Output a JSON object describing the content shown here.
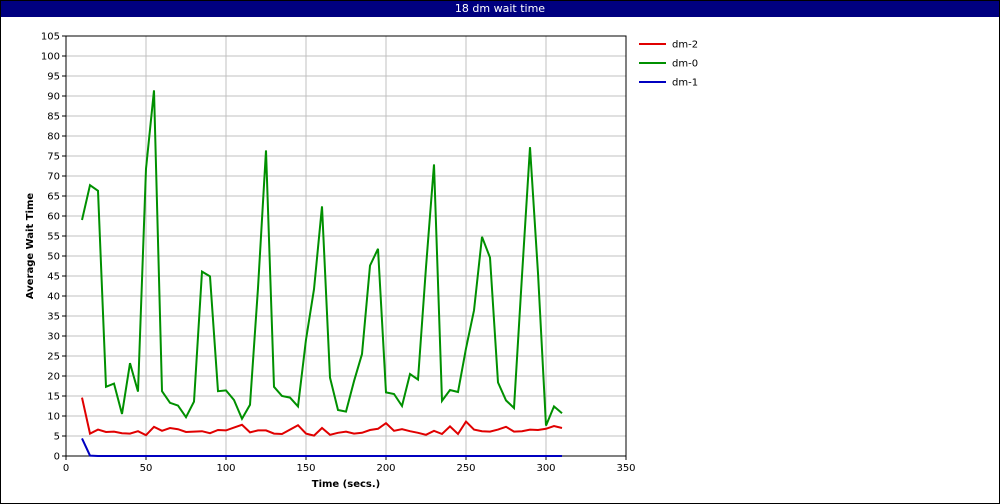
{
  "window": {
    "title": "18 dm wait time"
  },
  "chart_data": {
    "type": "line",
    "title": "18 dm wait time",
    "xlabel": "Time (secs.)",
    "ylabel": "Average Wait Time",
    "xlim": [
      0,
      350
    ],
    "ylim": [
      0,
      105
    ],
    "x_ticks": [
      0,
      50,
      100,
      150,
      200,
      250,
      300,
      350
    ],
    "y_ticks": [
      0,
      5,
      10,
      15,
      20,
      25,
      30,
      35,
      40,
      45,
      50,
      55,
      60,
      65,
      70,
      75,
      80,
      85,
      90,
      95,
      100,
      105
    ],
    "grid": true,
    "legend_position": "right",
    "series": [
      {
        "name": "dm-2",
        "color": "#e00000",
        "points": [
          [
            10,
            14.6
          ],
          [
            15,
            5.6
          ],
          [
            20,
            6.6
          ],
          [
            25,
            6.0
          ],
          [
            30,
            6.1
          ],
          [
            35,
            5.7
          ],
          [
            40,
            5.6
          ],
          [
            45,
            6.2
          ],
          [
            50,
            5.2
          ],
          [
            55,
            7.3
          ],
          [
            60,
            6.3
          ],
          [
            65,
            7.0
          ],
          [
            70,
            6.7
          ],
          [
            75,
            6.0
          ],
          [
            80,
            6.1
          ],
          [
            85,
            6.2
          ],
          [
            90,
            5.7
          ],
          [
            95,
            6.5
          ],
          [
            100,
            6.4
          ],
          [
            105,
            7.1
          ],
          [
            110,
            7.8
          ],
          [
            115,
            5.9
          ],
          [
            120,
            6.4
          ],
          [
            125,
            6.4
          ],
          [
            130,
            5.6
          ],
          [
            135,
            5.5
          ],
          [
            140,
            6.6
          ],
          [
            145,
            7.7
          ],
          [
            150,
            5.6
          ],
          [
            155,
            5.1
          ],
          [
            160,
            7.0
          ],
          [
            165,
            5.3
          ],
          [
            170,
            5.8
          ],
          [
            175,
            6.1
          ],
          [
            180,
            5.6
          ],
          [
            185,
            5.8
          ],
          [
            190,
            6.5
          ],
          [
            195,
            6.8
          ],
          [
            200,
            8.2
          ],
          [
            205,
            6.3
          ],
          [
            210,
            6.7
          ],
          [
            215,
            6.2
          ],
          [
            220,
            5.8
          ],
          [
            225,
            5.3
          ],
          [
            230,
            6.3
          ],
          [
            235,
            5.5
          ],
          [
            240,
            7.4
          ],
          [
            245,
            5.5
          ],
          [
            250,
            8.6
          ],
          [
            255,
            6.6
          ],
          [
            260,
            6.2
          ],
          [
            265,
            6.1
          ],
          [
            270,
            6.6
          ],
          [
            275,
            7.3
          ],
          [
            280,
            6.1
          ],
          [
            285,
            6.2
          ],
          [
            290,
            6.6
          ],
          [
            295,
            6.5
          ],
          [
            300,
            6.8
          ],
          [
            305,
            7.5
          ],
          [
            310,
            7.0
          ]
        ]
      },
      {
        "name": "dm-0",
        "color": "#009000",
        "points": [
          [
            10,
            59.0
          ],
          [
            15,
            67.7
          ],
          [
            20,
            66.3
          ],
          [
            25,
            17.3
          ],
          [
            30,
            18.1
          ],
          [
            35,
            10.5
          ],
          [
            40,
            23.2
          ],
          [
            45,
            16.1
          ],
          [
            50,
            71.8
          ],
          [
            55,
            91.4
          ],
          [
            60,
            16.2
          ],
          [
            65,
            13.3
          ],
          [
            70,
            12.6
          ],
          [
            75,
            9.7
          ],
          [
            80,
            13.6
          ],
          [
            85,
            46.1
          ],
          [
            90,
            44.9
          ],
          [
            95,
            16.2
          ],
          [
            100,
            16.4
          ],
          [
            105,
            14.0
          ],
          [
            110,
            9.3
          ],
          [
            115,
            12.8
          ],
          [
            120,
            42.0
          ],
          [
            125,
            76.4
          ],
          [
            130,
            17.3
          ],
          [
            135,
            15.0
          ],
          [
            140,
            14.6
          ],
          [
            145,
            12.4
          ],
          [
            150,
            29.1
          ],
          [
            155,
            41.7
          ],
          [
            160,
            62.4
          ],
          [
            165,
            19.6
          ],
          [
            170,
            11.5
          ],
          [
            175,
            11.1
          ],
          [
            180,
            18.7
          ],
          [
            185,
            25.5
          ],
          [
            190,
            47.6
          ],
          [
            195,
            51.8
          ],
          [
            200,
            15.9
          ],
          [
            205,
            15.5
          ],
          [
            210,
            12.5
          ],
          [
            215,
            20.5
          ],
          [
            220,
            19.1
          ],
          [
            225,
            47.2
          ],
          [
            230,
            72.9
          ],
          [
            235,
            13.8
          ],
          [
            240,
            16.5
          ],
          [
            245,
            16.0
          ],
          [
            250,
            26.9
          ],
          [
            255,
            36.4
          ],
          [
            260,
            54.8
          ],
          [
            265,
            49.6
          ],
          [
            270,
            18.4
          ],
          [
            275,
            13.9
          ],
          [
            280,
            12.0
          ],
          [
            285,
            45.1
          ],
          [
            290,
            77.2
          ],
          [
            295,
            45.7
          ],
          [
            300,
            7.6
          ],
          [
            305,
            12.4
          ],
          [
            310,
            10.7
          ]
        ]
      },
      {
        "name": "dm-1",
        "color": "#0000c0",
        "points": [
          [
            10,
            4.4
          ],
          [
            15,
            0.1
          ],
          [
            20,
            0
          ],
          [
            25,
            0
          ],
          [
            30,
            0
          ],
          [
            50,
            0
          ],
          [
            100,
            0
          ],
          [
            150,
            0
          ],
          [
            200,
            0
          ],
          [
            250,
            0
          ],
          [
            300,
            0
          ],
          [
            310,
            0
          ]
        ]
      }
    ]
  }
}
